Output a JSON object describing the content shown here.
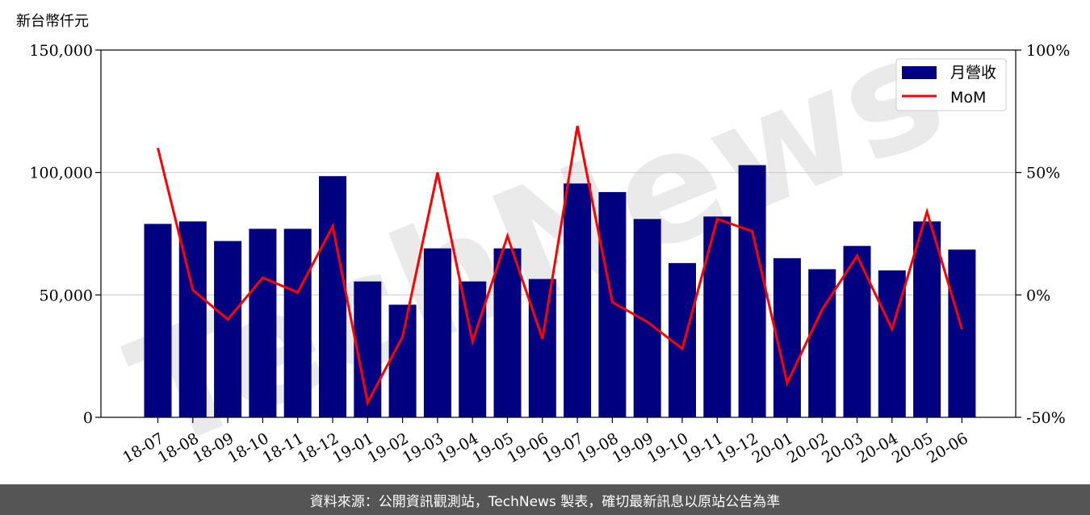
{
  "unit_label": "新台幣仟元",
  "footer_text": "資料來源：公開資訊觀測站，TechNews 製表，確切最新訊息以原站公告為準",
  "watermark_text": "TechNews",
  "colors": {
    "bar": "#000080",
    "line": "#ff0000",
    "grid": "#cccccc",
    "footer_bg": "#555555"
  },
  "legend": {
    "bar_label": "月營收",
    "line_label": "MoM",
    "placement": "top-right"
  },
  "chart_data": {
    "type": "bar+line",
    "categories": [
      "18-07",
      "18-08",
      "18-09",
      "18-10",
      "18-11",
      "18-12",
      "19-01",
      "19-02",
      "19-03",
      "19-04",
      "19-05",
      "19-06",
      "19-07",
      "19-08",
      "19-09",
      "19-10",
      "19-11",
      "19-12",
      "20-01",
      "20-02",
      "20-03",
      "20-04",
      "20-05",
      "20-06"
    ],
    "series": [
      {
        "name": "月營收",
        "axis": "left",
        "kind": "bar",
        "values": [
          79000,
          80000,
          72000,
          77000,
          77000,
          98500,
          55500,
          46000,
          69000,
          55500,
          69000,
          56500,
          95500,
          92000,
          81000,
          63000,
          82000,
          103000,
          65000,
          60500,
          70000,
          60000,
          80000,
          68500
        ]
      },
      {
        "name": "MoM",
        "axis": "right",
        "kind": "line",
        "values": [
          60,
          2,
          -10,
          7,
          1,
          28,
          -44,
          -17,
          50,
          -19,
          24,
          -18,
          69,
          -3,
          -11,
          -22,
          31,
          26,
          -36,
          -6,
          16,
          -14,
          34,
          -14
        ]
      }
    ],
    "y_left": {
      "ylim": [
        0,
        150000
      ],
      "ticks": [
        "0",
        "50,000",
        "100,000",
        "150,000"
      ],
      "tick_values": [
        0,
        50000,
        100000,
        150000
      ]
    },
    "y_right": {
      "ylim": [
        -50,
        100
      ],
      "ticks": [
        "-50%",
        "0%",
        "50%",
        "100%"
      ],
      "tick_values": [
        -50,
        0,
        50,
        100
      ]
    },
    "grid": "horizontal"
  }
}
